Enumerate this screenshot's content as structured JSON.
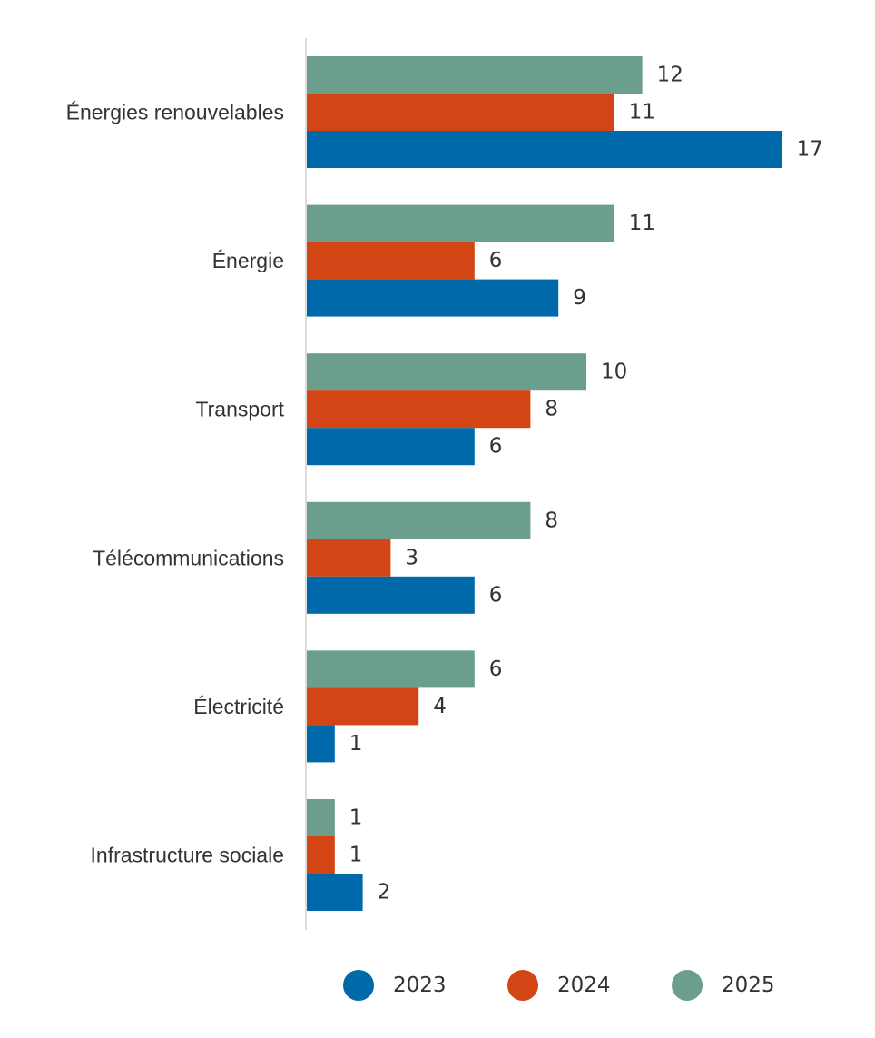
{
  "chart_data": {
    "type": "bar",
    "orientation": "horizontal",
    "categories": [
      "Énergies renouvelables",
      "Énergie",
      "Transport",
      "Télécommunications",
      "Électricité",
      "Infrastructure sociale"
    ],
    "series": [
      {
        "name": "2025",
        "color": "#6b9e8d",
        "values": [
          12,
          11,
          10,
          8,
          6,
          1
        ]
      },
      {
        "name": "2024",
        "color": "#d44516",
        "values": [
          11,
          6,
          8,
          3,
          4,
          1
        ]
      },
      {
        "name": "2023",
        "color": "#0069aa",
        "values": [
          17,
          9,
          6,
          6,
          1,
          2
        ]
      }
    ],
    "legend": {
      "position": "bottom",
      "order": [
        "2023",
        "2024",
        "2025"
      ]
    },
    "title": "",
    "xlabel": "",
    "ylabel": "",
    "xlim": [
      0,
      17
    ],
    "grid": false,
    "data_labels": true
  }
}
